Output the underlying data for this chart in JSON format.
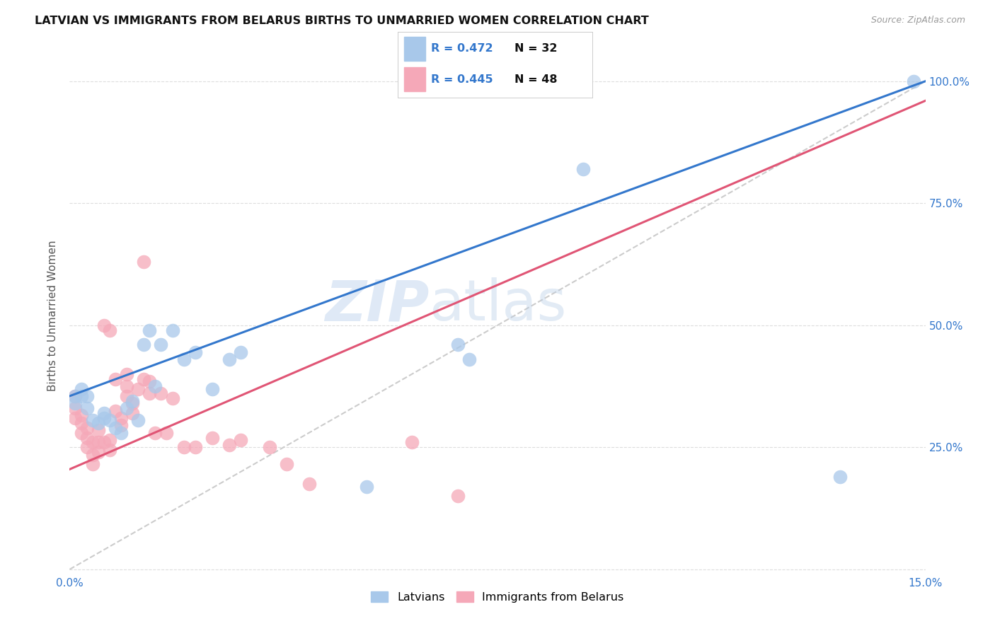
{
  "title": "LATVIAN VS IMMIGRANTS FROM BELARUS BIRTHS TO UNMARRIED WOMEN CORRELATION CHART",
  "source": "Source: ZipAtlas.com",
  "ylabel": "Births to Unmarried Women",
  "legend_labels": [
    "Latvians",
    "Immigrants from Belarus"
  ],
  "R_latvian": 0.472,
  "N_latvian": 32,
  "R_belarus": 0.445,
  "N_belarus": 48,
  "x_min": 0.0,
  "x_max": 0.15,
  "y_min": 0.0,
  "y_max": 1.05,
  "yticks": [
    0.0,
    0.25,
    0.5,
    0.75,
    1.0
  ],
  "xticks": [
    0.0,
    0.05,
    0.1,
    0.15
  ],
  "xtick_labels": [
    "0.0%",
    "",
    "",
    "15.0%"
  ],
  "color_latvian": "#a8c8ea",
  "color_belarus": "#f5a8b8",
  "line_color_latvian": "#3377cc",
  "line_color_belarus": "#e05575",
  "watermark_zip": "ZIP",
  "watermark_atlas": "atlas",
  "latvian_x": [
    0.001,
    0.001,
    0.002,
    0.002,
    0.003,
    0.003,
    0.004,
    0.005,
    0.006,
    0.006,
    0.007,
    0.008,
    0.009,
    0.01,
    0.011,
    0.012,
    0.013,
    0.014,
    0.015,
    0.016,
    0.018,
    0.02,
    0.022,
    0.025,
    0.028,
    0.03,
    0.052,
    0.068,
    0.07,
    0.09,
    0.135,
    0.148
  ],
  "latvian_y": [
    0.355,
    0.34,
    0.355,
    0.37,
    0.355,
    0.33,
    0.305,
    0.3,
    0.31,
    0.32,
    0.305,
    0.29,
    0.28,
    0.33,
    0.345,
    0.305,
    0.46,
    0.49,
    0.375,
    0.46,
    0.49,
    0.43,
    0.445,
    0.37,
    0.43,
    0.445,
    0.17,
    0.46,
    0.43,
    0.82,
    0.19,
    1.0
  ],
  "belarus_x": [
    0.001,
    0.001,
    0.001,
    0.002,
    0.002,
    0.002,
    0.003,
    0.003,
    0.003,
    0.004,
    0.004,
    0.004,
    0.005,
    0.005,
    0.005,
    0.006,
    0.006,
    0.007,
    0.007,
    0.007,
    0.008,
    0.008,
    0.009,
    0.009,
    0.01,
    0.01,
    0.01,
    0.011,
    0.011,
    0.012,
    0.013,
    0.013,
    0.014,
    0.014,
    0.015,
    0.016,
    0.017,
    0.018,
    0.02,
    0.022,
    0.025,
    0.028,
    0.03,
    0.035,
    0.038,
    0.042,
    0.06,
    0.068
  ],
  "belarus_y": [
    0.31,
    0.33,
    0.355,
    0.28,
    0.3,
    0.315,
    0.25,
    0.27,
    0.29,
    0.215,
    0.235,
    0.26,
    0.24,
    0.26,
    0.285,
    0.26,
    0.5,
    0.245,
    0.265,
    0.49,
    0.325,
    0.39,
    0.295,
    0.31,
    0.355,
    0.375,
    0.4,
    0.32,
    0.34,
    0.37,
    0.63,
    0.39,
    0.36,
    0.385,
    0.28,
    0.36,
    0.28,
    0.35,
    0.25,
    0.25,
    0.27,
    0.255,
    0.265,
    0.25,
    0.215,
    0.175,
    0.26,
    0.15
  ],
  "line_latvian_x0": 0.0,
  "line_latvian_y0": 0.355,
  "line_latvian_x1": 0.15,
  "line_latvian_y1": 1.0,
  "line_belarus_x0": 0.0,
  "line_belarus_y0": 0.205,
  "line_belarus_x1": 0.15,
  "line_belarus_y1": 0.96
}
